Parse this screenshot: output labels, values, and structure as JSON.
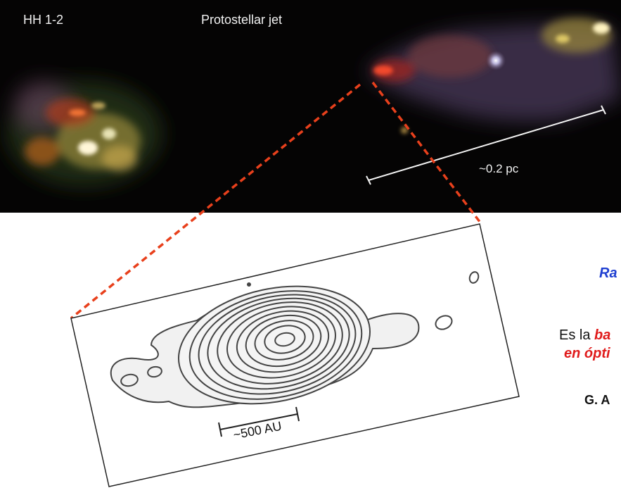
{
  "image_labels": {
    "object_name": "HH 1-2",
    "object_type": "Protostellar jet",
    "large_scale_bar": "~0.2 pc",
    "small_scale_bar": "~500 AU"
  },
  "side_text": {
    "title_fragment": "Ra",
    "line1_prefix": "Es la ",
    "line1_emphasis": "ba",
    "line2_fragment": "en ópti",
    "author_fragment": "G. A"
  },
  "colors": {
    "sky": "#050404",
    "zoom_lines": "#e8401c",
    "title_blue": "#1f3fd1",
    "emphasis_red": "#e01b1b"
  }
}
